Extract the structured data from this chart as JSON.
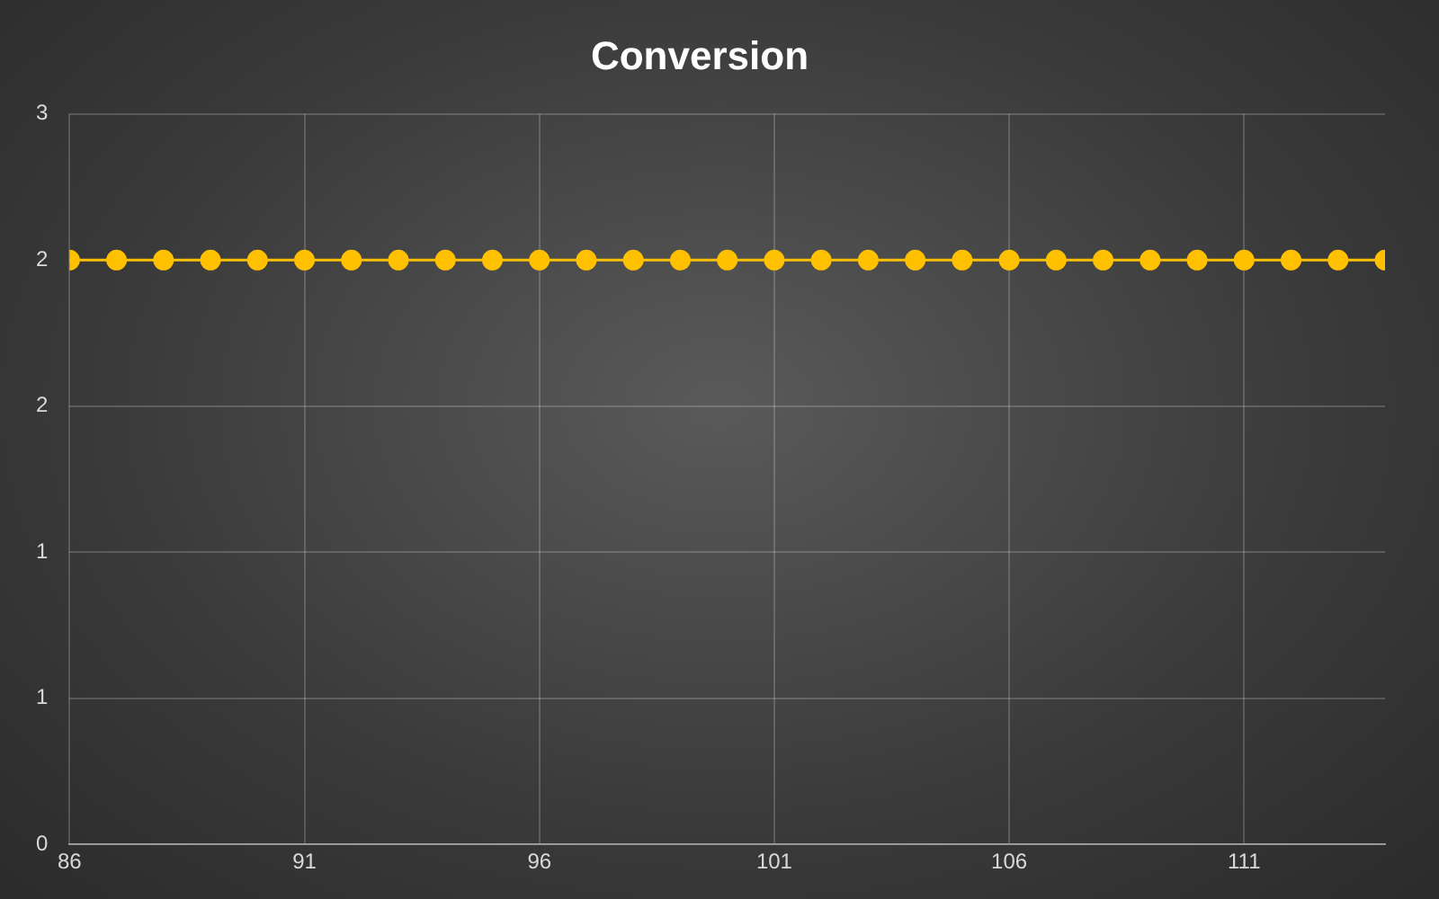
{
  "chart_data": {
    "type": "line",
    "title": "Conversion",
    "x": [
      86,
      87,
      88,
      89,
      90,
      91,
      92,
      93,
      94,
      95,
      96,
      97,
      98,
      99,
      100,
      101,
      102,
      103,
      104,
      105,
      106,
      107,
      108,
      109,
      110,
      111,
      112,
      113,
      114
    ],
    "series": [
      {
        "color": "#ffc000",
        "values": [
          2.4,
          2.4,
          2.4,
          2.4,
          2.4,
          2.4,
          2.4,
          2.4,
          2.4,
          2.4,
          2.4,
          2.4,
          2.4,
          2.4,
          2.4,
          2.4,
          2.4,
          2.4,
          2.4,
          2.4,
          2.4,
          2.4,
          2.4,
          2.4,
          2.4,
          2.4,
          2.4,
          2.4,
          2.4
        ]
      }
    ],
    "xlim": [
      86,
      114
    ],
    "xticks": [
      86,
      91,
      96,
      101,
      106,
      111
    ],
    "ylim": [
      0,
      3
    ],
    "yticks": [
      0,
      {
        "value": 0.6,
        "label": "1"
      },
      {
        "value": 1.2,
        "label": "1"
      },
      {
        "value": 1.8,
        "label": "2"
      },
      {
        "value": 2.4,
        "label": "2"
      },
      3
    ],
    "grid": true,
    "legend": false,
    "marker": "circle",
    "line_style": "solid"
  }
}
